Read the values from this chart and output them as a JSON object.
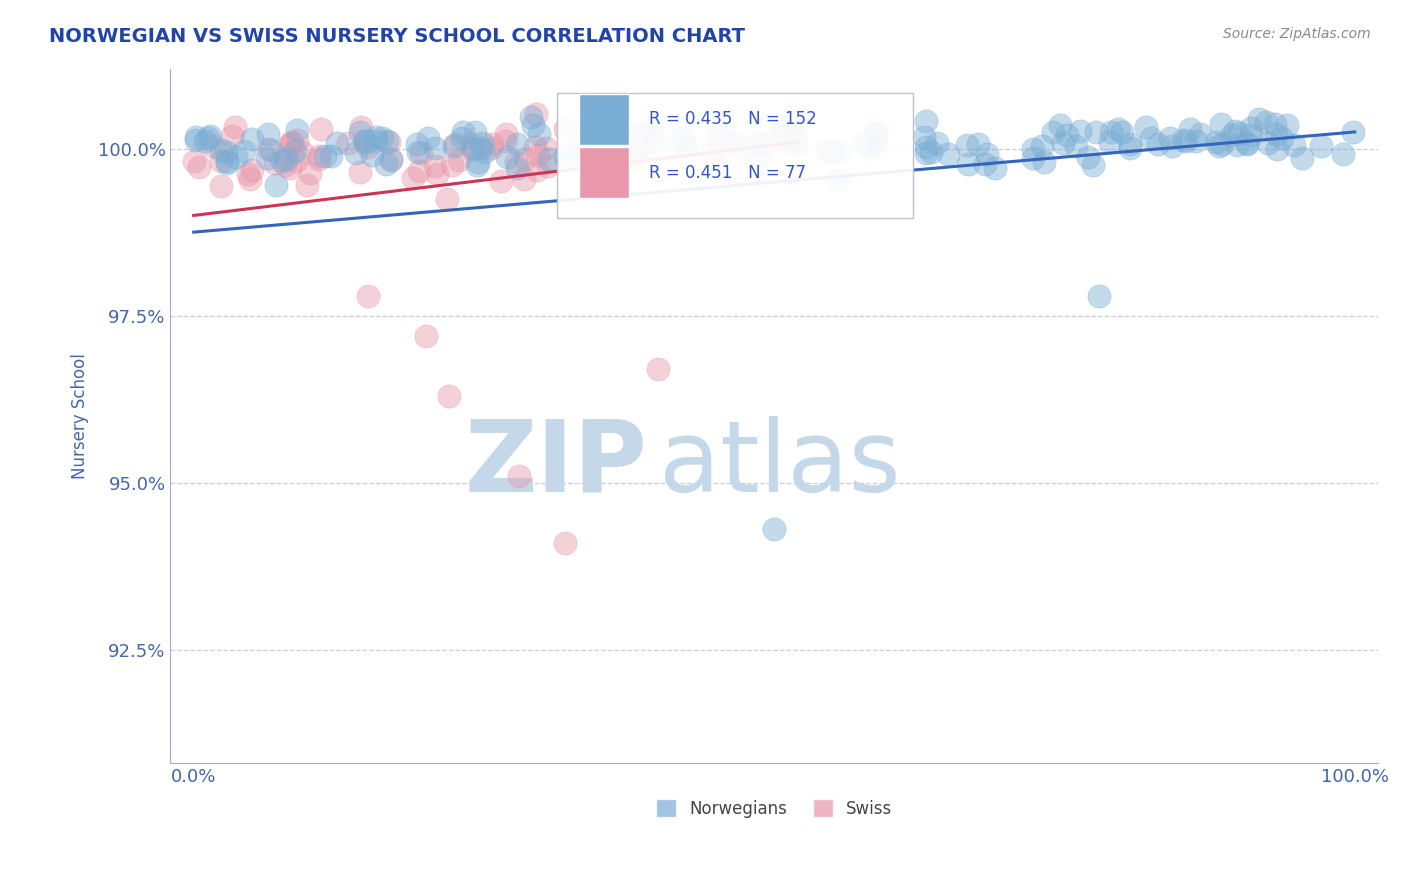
{
  "title": "NORWEGIAN VS SWISS NURSERY SCHOOL CORRELATION CHART",
  "source_text": "Source: ZipAtlas.com",
  "ylabel": "Nursery School",
  "xlim": [
    -2.0,
    102.0
  ],
  "ylim": [
    90.8,
    101.2
  ],
  "yticks": [
    92.5,
    95.0,
    97.5,
    100.0
  ],
  "ytick_labels": [
    "92.5%",
    "95.0%",
    "97.5%",
    "100.0%"
  ],
  "xtick_labels": [
    "0.0%",
    "100.0%"
  ],
  "norwegian_color": "#7aadd4",
  "swiss_color": "#e898aa",
  "trend_norwegian_color": "#3366bb",
  "trend_swiss_color": "#cc3355",
  "R_norwegian": 0.435,
  "N_norwegian": 152,
  "R_swiss": 0.451,
  "N_swiss": 77,
  "watermark_zip": "ZIP",
  "watermark_atlas": "atlas",
  "watermark_color": "#c5d8ea",
  "axis_color": "#4466aa",
  "grid_color": "#ccccdd",
  "title_color": "#2244aa",
  "legend_text_color": "#3355cc"
}
